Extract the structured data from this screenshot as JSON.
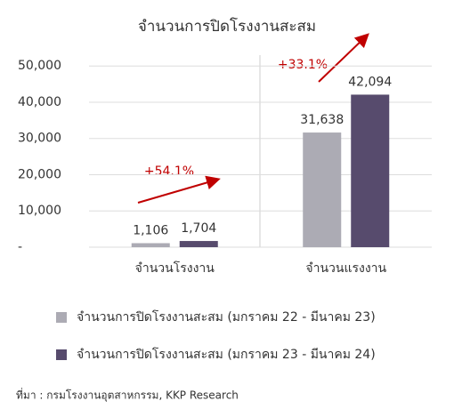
{
  "chart_data": {
    "type": "bar",
    "title": "จำนวนการปิดโรงงานสะสม",
    "categories": [
      "จำนวนโรงงาน",
      "จำนวนแรงงาน"
    ],
    "series": [
      {
        "name": "จำนวนการปิดโรงงานสะสม (มกราคม 22 - มีนาคม 23)",
        "color": "#acabb4",
        "values": [
          1106,
          31638
        ],
        "value_labels": [
          "1,106",
          "31,638"
        ]
      },
      {
        "name": "จำนวนการปิดโรงงานสะสม (มกราคม 23 - มีนาคม 24)",
        "color": "#574b6d",
        "values": [
          1704,
          42094
        ],
        "value_labels": [
          "1,704",
          "42,094"
        ]
      }
    ],
    "ylim": [
      0,
      53000
    ],
    "yticks": [
      {
        "value": 0,
        "label": "-"
      },
      {
        "value": 10000,
        "label": "10,000"
      },
      {
        "value": 20000,
        "label": "20,000"
      },
      {
        "value": 30000,
        "label": "30,000"
      },
      {
        "value": 40000,
        "label": "40,000"
      },
      {
        "value": 50000,
        "label": "50,000"
      }
    ],
    "grid": true,
    "annotations": [
      "+54.1%",
      "+33.1%"
    ],
    "source": "ที่มา : กรมโรงงานอุตสาหกรรม, KKP Research"
  }
}
